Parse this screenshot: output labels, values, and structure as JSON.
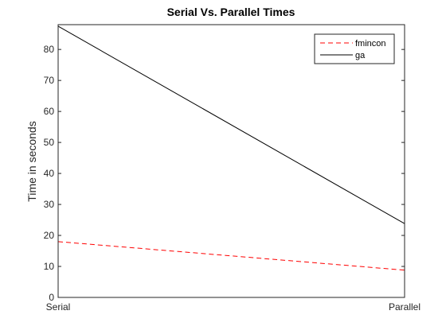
{
  "chart_data": {
    "type": "line",
    "title": "Serial Vs. Parallel Times",
    "xlabel": "",
    "ylabel": "Time in seconds",
    "categories": [
      "Serial",
      "Parallel"
    ],
    "ylim": [
      0,
      88
    ],
    "yticks": [
      0,
      10,
      20,
      30,
      40,
      50,
      60,
      70,
      80
    ],
    "grid": false,
    "legend_position": "top-right",
    "series": [
      {
        "name": "fmincon",
        "values": [
          18.0,
          8.8
        ],
        "color": "#ff0000",
        "line_style": "dashed"
      },
      {
        "name": "ga",
        "values": [
          87.5,
          23.8
        ],
        "color": "#000000",
        "line_style": "solid"
      }
    ]
  }
}
